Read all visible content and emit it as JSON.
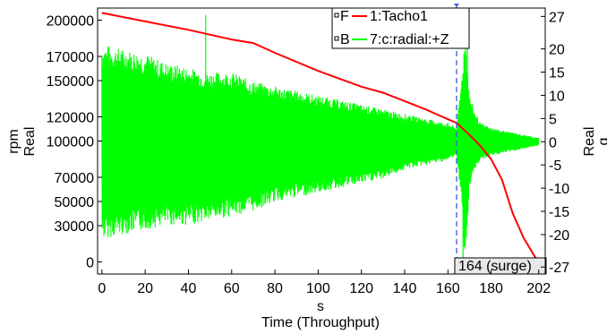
{
  "chart_data": {
    "type": "line",
    "title": "",
    "xlabel_line1": "s",
    "xlabel_line2": "Time (Throughput)",
    "ylabel_left_line1": "rpm",
    "ylabel_left_line2": "Real",
    "ylabel_right_line1": "Real",
    "ylabel_right_line2": "g",
    "xlim": [
      -2,
      205
    ],
    "ylim_left": [
      -10000,
      210000
    ],
    "ylim_right": [
      -28.5,
      28.8
    ],
    "x_ticks": [
      "0",
      "20",
      "40",
      "60",
      "80",
      "100",
      "120",
      "140",
      "160",
      "180",
      "202"
    ],
    "x_tick_values": [
      0,
      20,
      40,
      60,
      80,
      100,
      120,
      140,
      160,
      180,
      202
    ],
    "y_left_ticks": [
      "200000",
      "170000",
      "150000",
      "120000",
      "100000",
      "70000",
      "50000",
      "30000",
      "0"
    ],
    "y_left_tick_values": [
      200000,
      170000,
      150000,
      120000,
      100000,
      70000,
      50000,
      30000,
      0
    ],
    "y_right_ticks": [
      "27",
      "20",
      "15",
      "10",
      "5",
      "0",
      "-5",
      "-10",
      "-15",
      "-20",
      "-27"
    ],
    "y_right_tick_values": [
      27,
      20,
      15,
      10,
      5,
      0,
      -5,
      -10,
      -15,
      -20,
      -27
    ],
    "legend_position": "top-right",
    "legend": [
      {
        "marker": "F",
        "label": "1:Tacho1",
        "color": "#ff0000"
      },
      {
        "marker": "B",
        "label": "7:c:radial:+Z",
        "color": "#00ff00"
      }
    ],
    "series": [
      {
        "name": "1:Tacho1",
        "axis": "left",
        "color": "#ff0000",
        "x": [
          0,
          20,
          40,
          60,
          70,
          80,
          100,
          120,
          130,
          140,
          150,
          160,
          164,
          170,
          175,
          180,
          185,
          190,
          195,
          200,
          202
        ],
        "values": [
          206000,
          199000,
          192000,
          184000,
          181000,
          173000,
          158000,
          145000,
          140000,
          133000,
          126000,
          118000,
          115000,
          105000,
          96000,
          85000,
          68000,
          40000,
          20000,
          5000,
          0
        ]
      },
      {
        "name": "7:c:radial:+Z",
        "axis": "right",
        "color": "#00ff00",
        "type": "envelope",
        "x": [
          0,
          10,
          20,
          30,
          40,
          50,
          60,
          70,
          80,
          90,
          100,
          110,
          120,
          130,
          140,
          150,
          160,
          164,
          166,
          168,
          170,
          172,
          175,
          180,
          185,
          190,
          195,
          200,
          202
        ],
        "upper": [
          21,
          20,
          19,
          17,
          16,
          15,
          15,
          13,
          12,
          11,
          10,
          9,
          8,
          7,
          6,
          5,
          4,
          3,
          12,
          24,
          10,
          7,
          4,
          3,
          2.5,
          2,
          1.5,
          1,
          0.8
        ],
        "lower": [
          -21,
          -20,
          -19,
          -18,
          -18,
          -17,
          -16,
          -15,
          -13,
          -12,
          -11,
          -10,
          -9,
          -8,
          -6,
          -5,
          -4,
          -3,
          -12,
          -26,
          -10,
          -7,
          -4,
          -3,
          -2.5,
          -2,
          -1.5,
          -1,
          -0.8
        ],
        "spikes": [
          {
            "x": 48,
            "value": 27.3
          },
          {
            "x": 167,
            "value": -27
          },
          {
            "x": 169,
            "value": 23
          }
        ]
      }
    ],
    "cursor": {
      "x": 164,
      "label": "164 (surge)",
      "color": "#3a5bd6"
    }
  }
}
